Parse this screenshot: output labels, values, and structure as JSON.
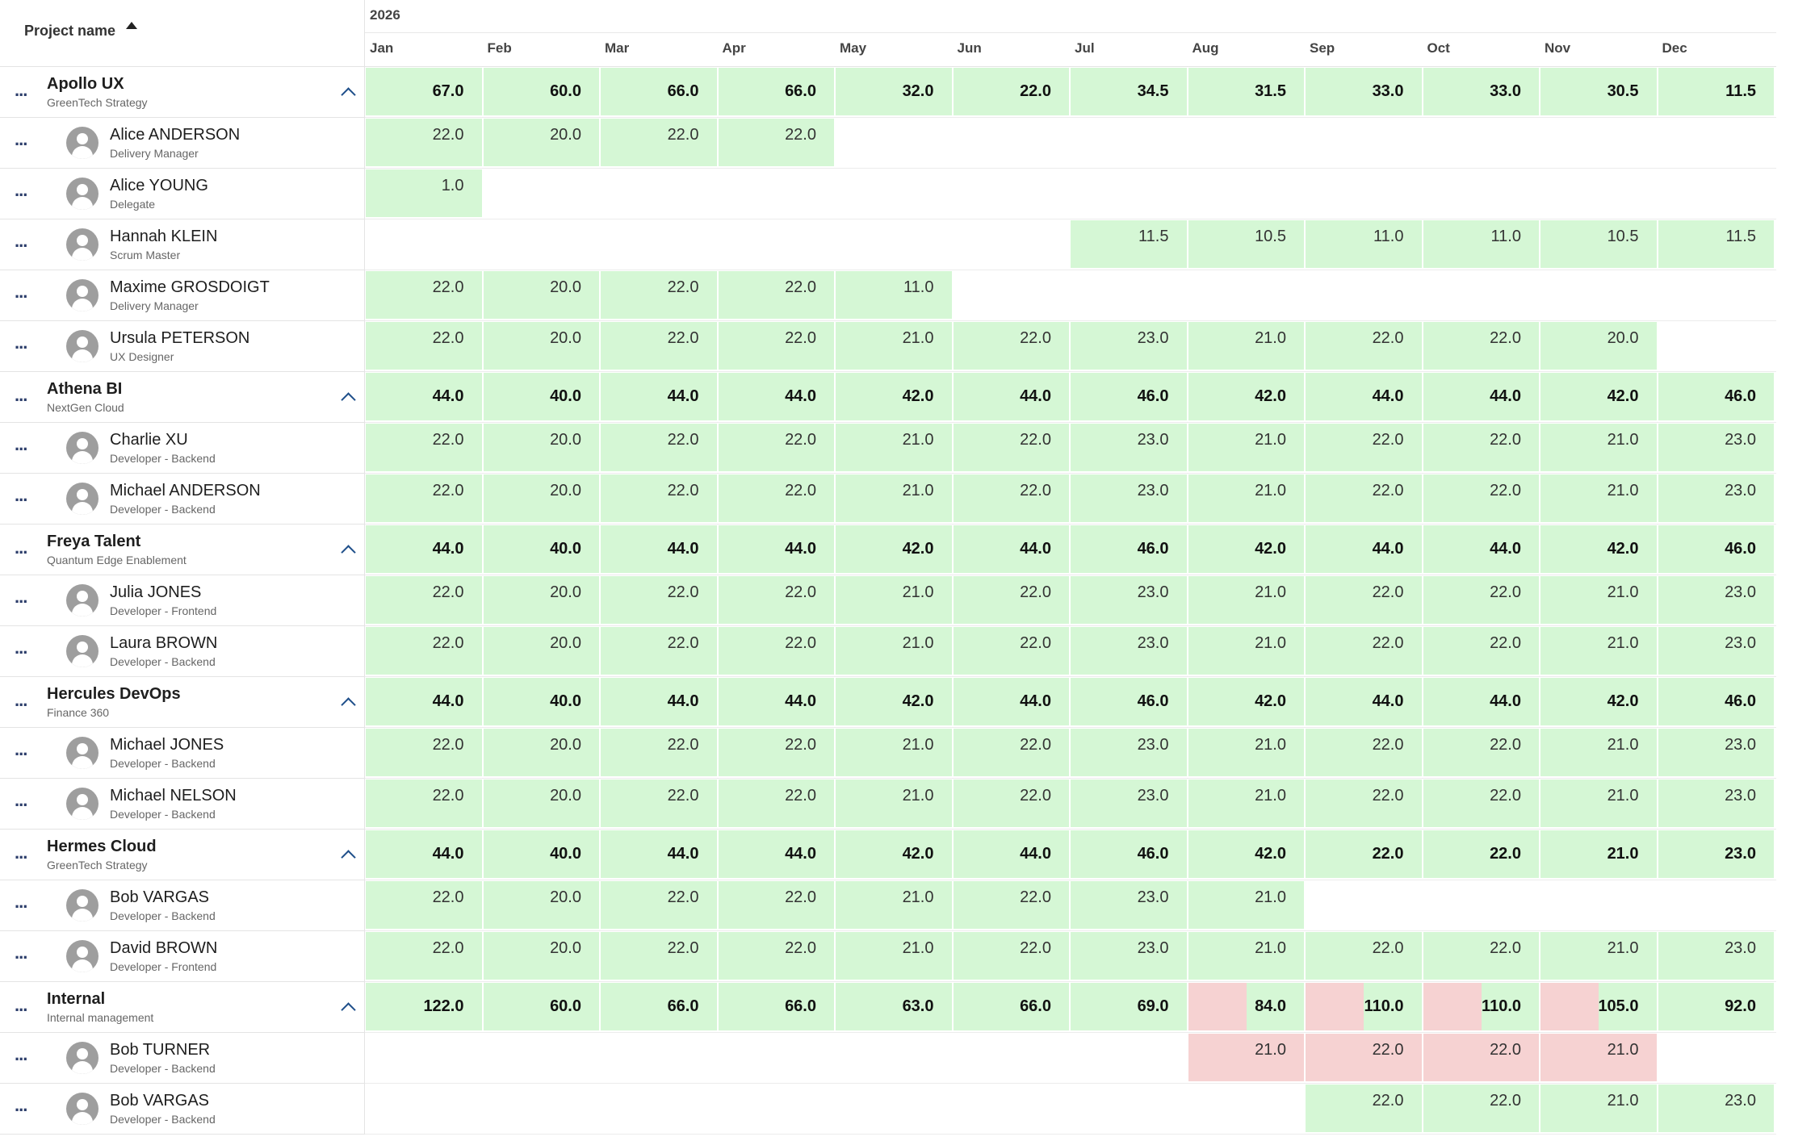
{
  "header": {
    "column_title": "Project name",
    "sort_icon": "sort-ascending-icon",
    "year": "2026",
    "months": [
      "Jan",
      "Feb",
      "Mar",
      "Apr",
      "May",
      "Jun",
      "Jul",
      "Aug",
      "Sep",
      "Oct",
      "Nov",
      "Dec"
    ]
  },
  "rows": [
    {
      "type": "project",
      "name": "Apollo UX",
      "sub": "GreenTech Strategy",
      "values": [
        "67.0",
        "60.0",
        "66.0",
        "66.0",
        "32.0",
        "22.0",
        "34.5",
        "31.5",
        "33.0",
        "33.0",
        "30.5",
        "11.5"
      ],
      "status": [
        "g",
        "g",
        "g",
        "g",
        "g",
        "g",
        "g",
        "g",
        "g",
        "g",
        "g",
        "g"
      ]
    },
    {
      "type": "person",
      "name": "Alice ANDERSON",
      "sub": "Delivery Manager",
      "values": [
        "22.0",
        "20.0",
        "22.0",
        "22.0",
        "",
        "",
        "",
        "",
        "",
        "",
        "",
        ""
      ],
      "status": [
        "g",
        "g",
        "g",
        "g",
        "",
        "",
        "",
        "",
        "",
        "",
        "",
        ""
      ]
    },
    {
      "type": "person",
      "name": "Alice YOUNG",
      "sub": "Delegate",
      "values": [
        "1.0",
        "",
        "",
        "",
        "",
        "",
        "",
        "",
        "",
        "",
        "",
        ""
      ],
      "status": [
        "g",
        "",
        "",
        "",
        "",
        "",
        "",
        "",
        "",
        "",
        "",
        ""
      ]
    },
    {
      "type": "person",
      "name": "Hannah KLEIN",
      "sub": "Scrum Master",
      "values": [
        "",
        "",
        "",
        "",
        "",
        "",
        "11.5",
        "10.5",
        "11.0",
        "11.0",
        "10.5",
        "11.5"
      ],
      "status": [
        "",
        "",
        "",
        "",
        "",
        "",
        "g",
        "g",
        "g",
        "g",
        "g",
        "g"
      ]
    },
    {
      "type": "person",
      "name": "Maxime GROSDOIGT",
      "sub": "Delivery Manager",
      "values": [
        "22.0",
        "20.0",
        "22.0",
        "22.0",
        "11.0",
        "",
        "",
        "",
        "",
        "",
        "",
        ""
      ],
      "status": [
        "g",
        "g",
        "g",
        "g",
        "g",
        "",
        "",
        "",
        "",
        "",
        "",
        ""
      ]
    },
    {
      "type": "person",
      "name": "Ursula PETERSON",
      "sub": "UX Designer",
      "values": [
        "22.0",
        "20.0",
        "22.0",
        "22.0",
        "21.0",
        "22.0",
        "23.0",
        "21.0",
        "22.0",
        "22.0",
        "20.0",
        ""
      ],
      "status": [
        "g",
        "g",
        "g",
        "g",
        "g",
        "g",
        "g",
        "g",
        "g",
        "g",
        "g",
        ""
      ]
    },
    {
      "type": "project",
      "name": "Athena BI",
      "sub": "NextGen Cloud",
      "values": [
        "44.0",
        "40.0",
        "44.0",
        "44.0",
        "42.0",
        "44.0",
        "46.0",
        "42.0",
        "44.0",
        "44.0",
        "42.0",
        "46.0"
      ],
      "status": [
        "g",
        "g",
        "g",
        "g",
        "g",
        "g",
        "g",
        "g",
        "g",
        "g",
        "g",
        "g"
      ]
    },
    {
      "type": "person",
      "name": "Charlie XU",
      "sub": "Developer - Backend",
      "values": [
        "22.0",
        "20.0",
        "22.0",
        "22.0",
        "21.0",
        "22.0",
        "23.0",
        "21.0",
        "22.0",
        "22.0",
        "21.0",
        "23.0"
      ],
      "status": [
        "g",
        "g",
        "g",
        "g",
        "g",
        "g",
        "g",
        "g",
        "g",
        "g",
        "g",
        "g"
      ]
    },
    {
      "type": "person",
      "name": "Michael ANDERSON",
      "sub": "Developer - Backend",
      "values": [
        "22.0",
        "20.0",
        "22.0",
        "22.0",
        "21.0",
        "22.0",
        "23.0",
        "21.0",
        "22.0",
        "22.0",
        "21.0",
        "23.0"
      ],
      "status": [
        "g",
        "g",
        "g",
        "g",
        "g",
        "g",
        "g",
        "g",
        "g",
        "g",
        "g",
        "g"
      ]
    },
    {
      "type": "project",
      "name": "Freya Talent",
      "sub": "Quantum Edge Enablement",
      "values": [
        "44.0",
        "40.0",
        "44.0",
        "44.0",
        "42.0",
        "44.0",
        "46.0",
        "42.0",
        "44.0",
        "44.0",
        "42.0",
        "46.0"
      ],
      "status": [
        "g",
        "g",
        "g",
        "g",
        "g",
        "g",
        "g",
        "g",
        "g",
        "g",
        "g",
        "g"
      ]
    },
    {
      "type": "person",
      "name": "Julia JONES",
      "sub": "Developer - Frontend",
      "values": [
        "22.0",
        "20.0",
        "22.0",
        "22.0",
        "21.0",
        "22.0",
        "23.0",
        "21.0",
        "22.0",
        "22.0",
        "21.0",
        "23.0"
      ],
      "status": [
        "g",
        "g",
        "g",
        "g",
        "g",
        "g",
        "g",
        "g",
        "g",
        "g",
        "g",
        "g"
      ]
    },
    {
      "type": "person",
      "name": "Laura BROWN",
      "sub": "Developer - Backend",
      "values": [
        "22.0",
        "20.0",
        "22.0",
        "22.0",
        "21.0",
        "22.0",
        "23.0",
        "21.0",
        "22.0",
        "22.0",
        "21.0",
        "23.0"
      ],
      "status": [
        "g",
        "g",
        "g",
        "g",
        "g",
        "g",
        "g",
        "g",
        "g",
        "g",
        "g",
        "g"
      ]
    },
    {
      "type": "project",
      "name": "Hercules DevOps",
      "sub": "Finance 360",
      "values": [
        "44.0",
        "40.0",
        "44.0",
        "44.0",
        "42.0",
        "44.0",
        "46.0",
        "42.0",
        "44.0",
        "44.0",
        "42.0",
        "46.0"
      ],
      "status": [
        "g",
        "g",
        "g",
        "g",
        "g",
        "g",
        "g",
        "g",
        "g",
        "g",
        "g",
        "g"
      ]
    },
    {
      "type": "person",
      "name": "Michael JONES",
      "sub": "Developer - Backend",
      "values": [
        "22.0",
        "20.0",
        "22.0",
        "22.0",
        "21.0",
        "22.0",
        "23.0",
        "21.0",
        "22.0",
        "22.0",
        "21.0",
        "23.0"
      ],
      "status": [
        "g",
        "g",
        "g",
        "g",
        "g",
        "g",
        "g",
        "g",
        "g",
        "g",
        "g",
        "g"
      ]
    },
    {
      "type": "person",
      "name": "Michael NELSON",
      "sub": "Developer - Backend",
      "values": [
        "22.0",
        "20.0",
        "22.0",
        "22.0",
        "21.0",
        "22.0",
        "23.0",
        "21.0",
        "22.0",
        "22.0",
        "21.0",
        "23.0"
      ],
      "status": [
        "g",
        "g",
        "g",
        "g",
        "g",
        "g",
        "g",
        "g",
        "g",
        "g",
        "g",
        "g"
      ]
    },
    {
      "type": "project",
      "name": "Hermes Cloud",
      "sub": "GreenTech Strategy",
      "values": [
        "44.0",
        "40.0",
        "44.0",
        "44.0",
        "42.0",
        "44.0",
        "46.0",
        "42.0",
        "22.0",
        "22.0",
        "21.0",
        "23.0"
      ],
      "status": [
        "g",
        "g",
        "g",
        "g",
        "g",
        "g",
        "g",
        "g",
        "g",
        "g",
        "g",
        "g"
      ]
    },
    {
      "type": "person",
      "name": "Bob VARGAS",
      "sub": "Developer - Backend",
      "values": [
        "22.0",
        "20.0",
        "22.0",
        "22.0",
        "21.0",
        "22.0",
        "23.0",
        "21.0",
        "",
        "",
        "",
        ""
      ],
      "status": [
        "g",
        "g",
        "g",
        "g",
        "g",
        "g",
        "g",
        "g",
        "",
        "",
        "",
        ""
      ]
    },
    {
      "type": "person",
      "name": "David BROWN",
      "sub": "Developer - Frontend",
      "values": [
        "22.0",
        "20.0",
        "22.0",
        "22.0",
        "21.0",
        "22.0",
        "23.0",
        "21.0",
        "22.0",
        "22.0",
        "21.0",
        "23.0"
      ],
      "status": [
        "g",
        "g",
        "g",
        "g",
        "g",
        "g",
        "g",
        "g",
        "g",
        "g",
        "g",
        "g"
      ]
    },
    {
      "type": "project",
      "name": "Internal",
      "sub": "Internal management",
      "values": [
        "122.0",
        "60.0",
        "66.0",
        "66.0",
        "63.0",
        "66.0",
        "69.0",
        "84.0",
        "110.0",
        "110.0",
        "105.0",
        "92.0"
      ],
      "status": [
        "g",
        "g",
        "g",
        "g",
        "g",
        "g",
        "g",
        "p",
        "p",
        "p",
        "p",
        "g"
      ]
    },
    {
      "type": "person",
      "name": "Bob TURNER",
      "sub": "Developer - Backend",
      "values": [
        "",
        "",
        "",
        "",
        "",
        "",
        "",
        "21.0",
        "22.0",
        "22.0",
        "21.0",
        ""
      ],
      "status": [
        "",
        "",
        "",
        "",
        "",
        "",
        "",
        "r",
        "r",
        "r",
        "r",
        ""
      ]
    },
    {
      "type": "person",
      "name": "Bob VARGAS",
      "sub": "Developer - Backend",
      "values": [
        "",
        "",
        "",
        "",
        "",
        "",
        "",
        "",
        "22.0",
        "22.0",
        "21.0",
        "23.0"
      ],
      "status": [
        "",
        "",
        "",
        "",
        "",
        "",
        "",
        "",
        "g",
        "g",
        "g",
        "g"
      ]
    }
  ],
  "icons": {
    "row_menu": "more-horizontal-icon",
    "collapse": "chevron-up-icon",
    "avatar": "user-avatar-icon"
  },
  "colors": {
    "available": "#d5f7d5",
    "overloaded": "#f6d2d2",
    "menu_dots": "#2c3e6b",
    "chevron": "#1f4f8a"
  }
}
